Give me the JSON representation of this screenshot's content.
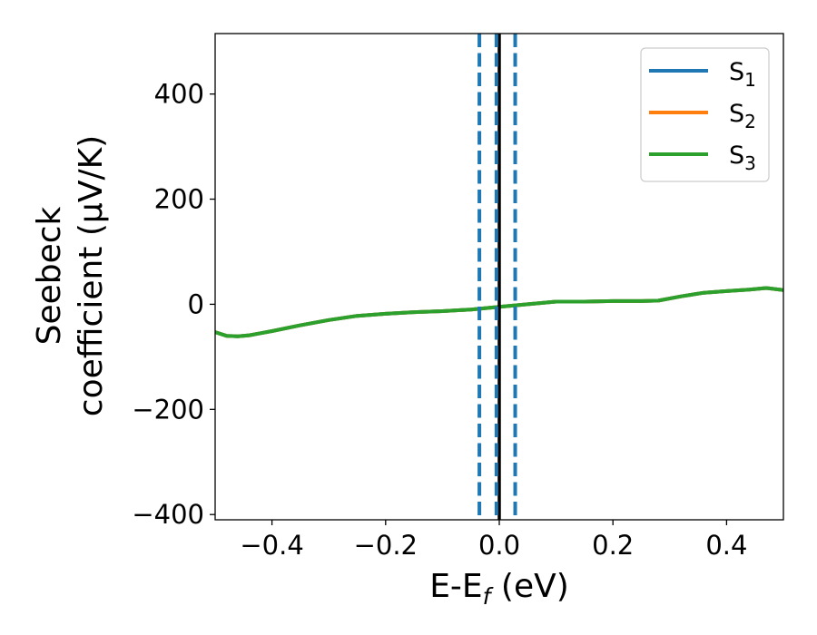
{
  "chart_data": {
    "type": "line",
    "xlabel": "E-E",
    "xlabel_sub": "f",
    "xlabel_unit": " (eV)",
    "ylabel_line1": "Seebeck",
    "ylabel_line2": "coefficient  (μV/K)",
    "xlim": [
      -0.5,
      0.5
    ],
    "ylim": [
      -410,
      515
    ],
    "x_ticks": [
      -0.4,
      -0.2,
      0.0,
      0.2,
      0.4
    ],
    "x_tick_labels": [
      "−0.4",
      "−0.2",
      "0.0",
      "0.2",
      "0.4"
    ],
    "y_ticks": [
      -400,
      -200,
      0,
      200,
      400
    ],
    "y_tick_labels": [
      "−400",
      "−200",
      "0",
      "200",
      "400"
    ],
    "legend": {
      "position": "top-right"
    },
    "series": [
      {
        "name": "S",
        "name_sub": "1",
        "color": "#1f77b4",
        "x": [
          -0.5,
          -0.48,
          -0.46,
          -0.44,
          -0.42,
          -0.4,
          -0.35,
          -0.3,
          -0.25,
          -0.2,
          -0.15,
          -0.1,
          -0.05,
          0.0,
          0.05,
          0.1,
          0.15,
          0.2,
          0.25,
          0.28,
          0.32,
          0.36,
          0.4,
          0.44,
          0.47,
          0.5
        ],
        "y": [
          -53,
          -60,
          -61,
          -59,
          -55,
          -51,
          -40,
          -30,
          -22,
          -18,
          -15,
          -13,
          -10,
          -5,
          0,
          5,
          5,
          6,
          6,
          7,
          15,
          22,
          25,
          28,
          31,
          27
        ]
      },
      {
        "name": "S",
        "name_sub": "2",
        "color": "#ff7f0e",
        "x": [
          -0.5,
          -0.48,
          -0.46,
          -0.44,
          -0.42,
          -0.4,
          -0.35,
          -0.3,
          -0.25,
          -0.2,
          -0.15,
          -0.1,
          -0.05,
          0.0,
          0.05,
          0.1,
          0.15,
          0.2,
          0.25,
          0.28,
          0.32,
          0.36,
          0.4,
          0.44,
          0.47,
          0.5
        ],
        "y": [
          -53,
          -60,
          -61,
          -59,
          -55,
          -51,
          -40,
          -30,
          -22,
          -18,
          -15,
          -13,
          -10,
          -5,
          0,
          5,
          5,
          6,
          6,
          7,
          15,
          22,
          25,
          28,
          31,
          27
        ]
      },
      {
        "name": "S",
        "name_sub": "3",
        "color": "#2ca02c",
        "x": [
          -0.5,
          -0.48,
          -0.46,
          -0.44,
          -0.42,
          -0.4,
          -0.35,
          -0.3,
          -0.25,
          -0.2,
          -0.15,
          -0.1,
          -0.05,
          0.0,
          0.05,
          0.1,
          0.15,
          0.2,
          0.25,
          0.28,
          0.32,
          0.36,
          0.4,
          0.44,
          0.47,
          0.5
        ],
        "y": [
          -53,
          -60,
          -61,
          -59,
          -55,
          -51,
          -40,
          -30,
          -22,
          -18,
          -15,
          -13,
          -10,
          -5,
          0,
          5,
          5,
          6,
          6,
          7,
          15,
          22,
          25,
          28,
          31,
          27
        ]
      }
    ],
    "vertical_lines": [
      {
        "x": 0.0,
        "style": "solid",
        "color": "#000000"
      },
      {
        "x": -0.035,
        "style": "dashed",
        "color": "#1f77b4"
      },
      {
        "x": -0.005,
        "style": "dashed",
        "color": "#1f77b4"
      },
      {
        "x": 0.028,
        "style": "dashed",
        "color": "#1f77b4"
      }
    ]
  }
}
